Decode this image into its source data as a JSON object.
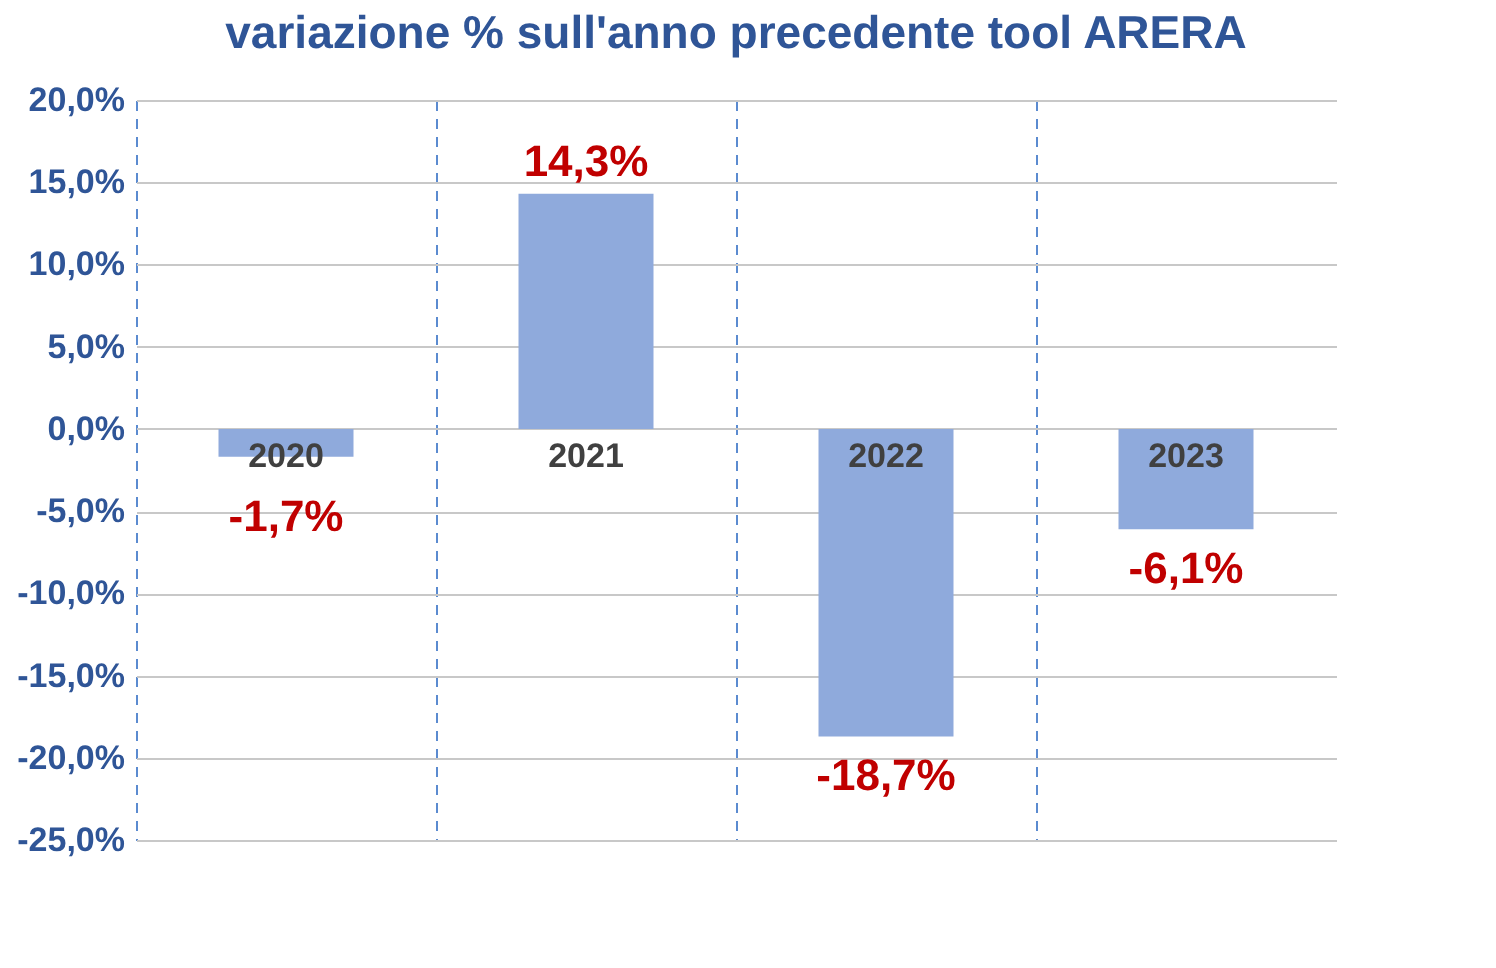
{
  "chart_data": {
    "type": "bar",
    "title": "variazione % sull'anno precedente tool ARERA",
    "categories": [
      "2020",
      "2021",
      "2022",
      "2023"
    ],
    "values": [
      -1.7,
      14.3,
      -18.7,
      -6.1
    ],
    "color": "#8faadc",
    "value_labels": [
      "-1,7%",
      "14,3%",
      "-18,7%",
      "-6,1%"
    ],
    "ylim": [
      -25,
      20
    ],
    "yticks": [
      {
        "value": 20,
        "label": "20,0%"
      },
      {
        "value": 15,
        "label": "15,0%"
      },
      {
        "value": 10,
        "label": "10,0%"
      },
      {
        "value": 5,
        "label": "5,0%"
      },
      {
        "value": 0,
        "label": "0,0%"
      },
      {
        "value": -5,
        "label": "-5,0%"
      },
      {
        "value": -10,
        "label": "-10,0%"
      },
      {
        "value": -15,
        "label": "-15,0%"
      },
      {
        "value": -20,
        "label": "-20,0%"
      },
      {
        "value": -25,
        "label": "-25,0%"
      }
    ],
    "grid": true
  }
}
